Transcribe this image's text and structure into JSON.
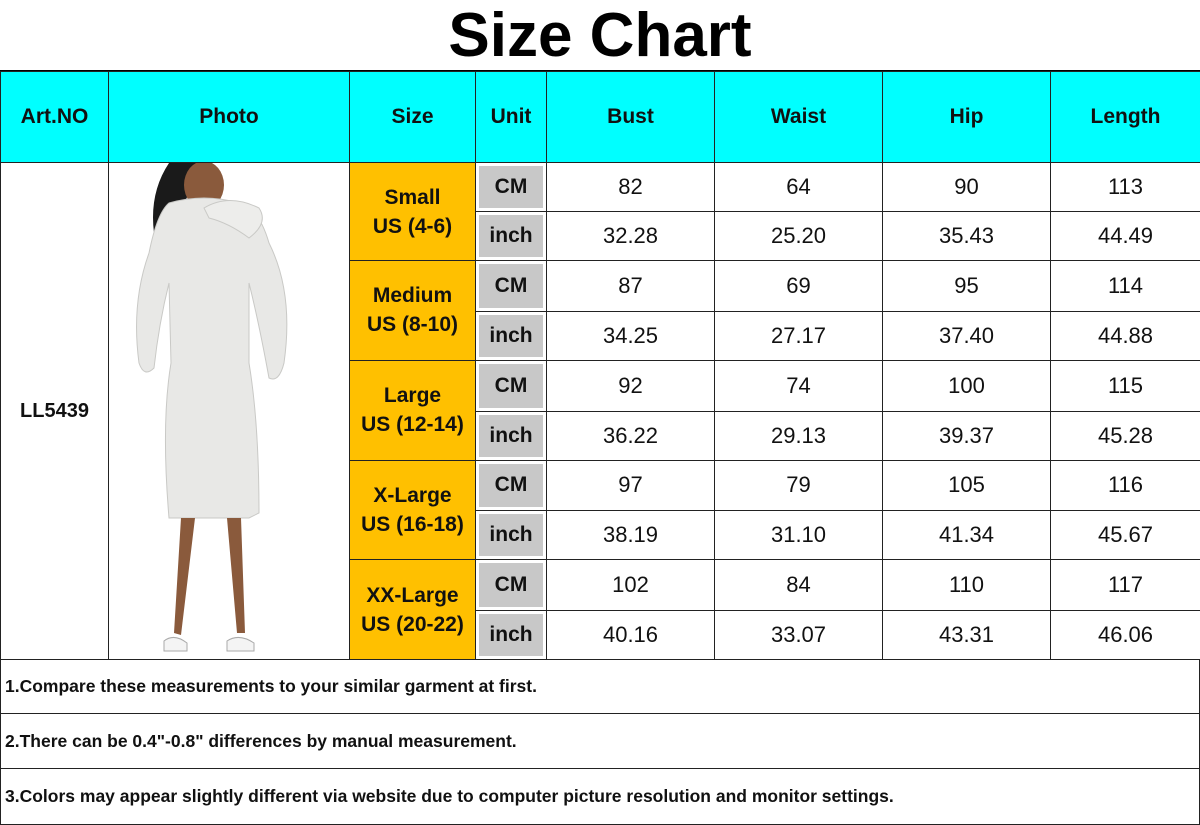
{
  "title": "Size Chart",
  "headers": [
    "Art.NO",
    "Photo",
    "Size",
    "Unit",
    "Bust",
    "Waist",
    "Hip",
    "Length"
  ],
  "art_no": "LL5439",
  "sizes": [
    {
      "name": "Small",
      "us": "US (4-6)",
      "cm": [
        "82",
        "64",
        "90",
        "113"
      ],
      "inch": [
        "32.28",
        "25.20",
        "35.43",
        "44.49"
      ]
    },
    {
      "name": "Medium",
      "us": "US (8-10)",
      "cm": [
        "87",
        "69",
        "95",
        "114"
      ],
      "inch": [
        "34.25",
        "27.17",
        "37.40",
        "44.88"
      ]
    },
    {
      "name": "Large",
      "us": "US (12-14)",
      "cm": [
        "92",
        "74",
        "100",
        "115"
      ],
      "inch": [
        "36.22",
        "29.13",
        "39.37",
        "45.28"
      ]
    },
    {
      "name": "X-Large",
      "us": "US (16-18)",
      "cm": [
        "97",
        "79",
        "105",
        "116"
      ],
      "inch": [
        "38.19",
        "31.10",
        "41.34",
        "45.67"
      ]
    },
    {
      "name": "XX-Large",
      "us": "US (20-22)",
      "cm": [
        "102",
        "84",
        "110",
        "117"
      ],
      "inch": [
        "40.16",
        "33.07",
        "43.31",
        "46.06"
      ]
    }
  ],
  "units": {
    "cm": "CM",
    "inch": "inch"
  },
  "notes": [
    "1.Compare these measurements to your similar garment at first.",
    "2.There can be 0.4\"-0.8\" differences by manual measurement.",
    "3.Colors may appear slightly different via website due to computer picture resolution and monitor settings."
  ],
  "colors": {
    "header": "#00ffff",
    "size_cell": "#ffc000",
    "unit_cell": "#c8c8c8"
  }
}
